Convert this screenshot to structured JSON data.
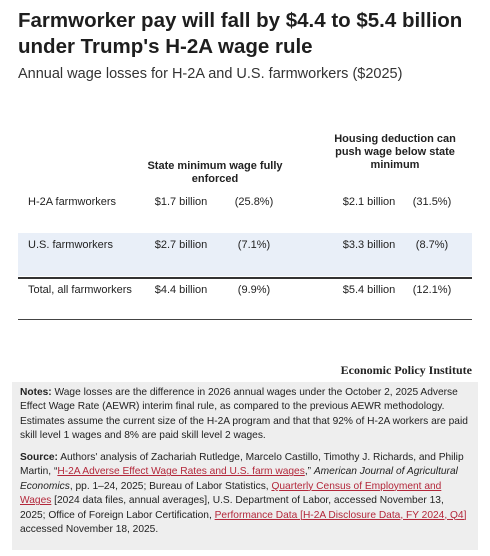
{
  "header": {
    "title": "Farmworker pay will fall by $4.4 to $5.4 billion under Trump's H-2A wage rule",
    "subtitle": "Annual wage losses for H-2A and U.S. farmworkers ($2025)"
  },
  "table": {
    "columns": [
      "State minimum wage fully enforced",
      "Housing deduction can push wage below state minimum"
    ],
    "rows": [
      {
        "label": "H-2A farmworkers",
        "a_val": "$1.7 billion",
        "a_pct": "(25.8%)",
        "b_val": "$2.1 billion",
        "b_pct": "(31.5%)"
      },
      {
        "label": "U.S. farmworkers",
        "a_val": "$2.7 billion",
        "a_pct": "(7.1%)",
        "b_val": "$3.3 billion",
        "b_pct": "(8.7%)"
      },
      {
        "label": "Total, all farmworkers",
        "a_val": "$4.4 billion",
        "a_pct": "(9.9%)",
        "b_val": "$5.4 billion",
        "b_pct": "(12.1%)"
      }
    ],
    "colors": {
      "shaded_row": "#e9eff8",
      "link": "#b3273a"
    }
  },
  "brand": "Economic Policy Institute",
  "notes": {
    "label": "Notes:",
    "text": " Wage losses are the difference in 2026 annual wages under the October 2, 2025 Adverse Effect Wage Rate (AEWR) interim final rule, as compared to the previous AEWR methodology. Estimates assume the current size of the H-2A program and that that 92% of H-2A workers are paid skill level 1 wages and 8% are paid skill level 2 wages."
  },
  "source": {
    "label": "Source:",
    "t1": " Authors' analysis of Zachariah Rutledge, Marcelo Castillo, Timothy J. Richards, and Philip Martin, “",
    "link1": "H-2A Adverse Effect Wage Rates and U.S. farm wages",
    "t2": ",” ",
    "journal": "American Journal of Agricultural Economics",
    "t3": ", pp. 1–24, 2025; Bureau of Labor Statistics, ",
    "link2": "Quarterly Census of Employment and Wages",
    "t4": " [2024 data files, annual averages], U.S. Department of Labor, accessed November 13, 2025; Office of Foreign Labor Certification, ",
    "link3": "Performance Data [H-2A Disclosure Data, FY 2024, Q4]",
    "t5": " accessed November 18, 2025."
  }
}
